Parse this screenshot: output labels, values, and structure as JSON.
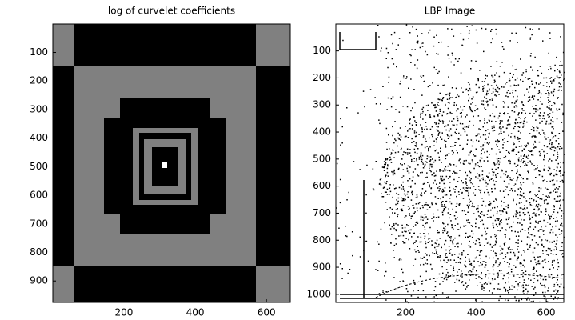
{
  "chart_data": [
    {
      "type": "image",
      "title": "log of curvelet coefficients",
      "xlim": [
        0.5,
        667
      ],
      "ylim": [
        0.5,
        975
      ],
      "y_reversed": true,
      "xticks": [
        200,
        400,
        600
      ],
      "yticks": [
        100,
        200,
        300,
        400,
        500,
        600,
        700,
        800,
        900
      ]
    },
    {
      "type": "image",
      "title": "LBP Image",
      "xlim": [
        0.5,
        650
      ],
      "ylim": [
        0.5,
        1030
      ],
      "y_reversed": true,
      "xticks": [
        200,
        400,
        600
      ],
      "yticks": [
        100,
        200,
        300,
        400,
        500,
        600,
        700,
        800,
        900,
        1000
      ]
    }
  ]
}
